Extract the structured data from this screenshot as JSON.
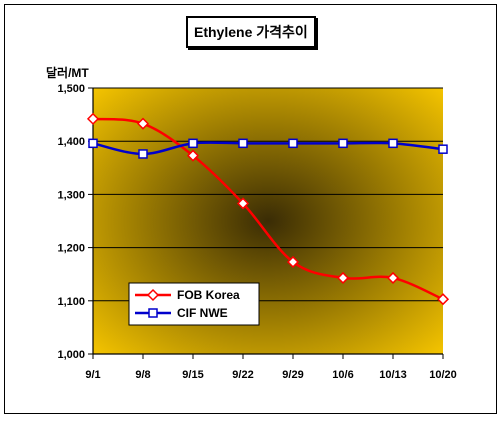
{
  "chart_data": {
    "type": "line",
    "title": "Ethylene 가격추이",
    "ylabel": "달러/MT",
    "xlabel": "",
    "categories": [
      "9/1",
      "9/8",
      "9/15",
      "9/22",
      "9/29",
      "10/6",
      "10/13",
      "10/20"
    ],
    "ylim": [
      1000,
      1500
    ],
    "yticks": [
      1000,
      1100,
      1200,
      1300,
      1400,
      1500
    ],
    "ytick_labels": [
      "1,000",
      "1,100",
      "1,200",
      "1,300",
      "1,400",
      "1,500"
    ],
    "grid": true,
    "legend_position": "bottom-left",
    "series": [
      {
        "name": "FOB Korea",
        "color": "#ff0000",
        "marker": "diamond",
        "values": [
          1442,
          1433,
          1373,
          1283,
          1173,
          1143,
          1143,
          1103
        ]
      },
      {
        "name": "CIF NWE",
        "color": "#0000cc",
        "marker": "square",
        "values": [
          1396,
          1376,
          1396,
          1396,
          1396,
          1396,
          1396,
          1385
        ]
      }
    ],
    "colors": {
      "plot_gradient_center": "#3a2c05",
      "plot_gradient_edge": "#f3c300"
    }
  }
}
